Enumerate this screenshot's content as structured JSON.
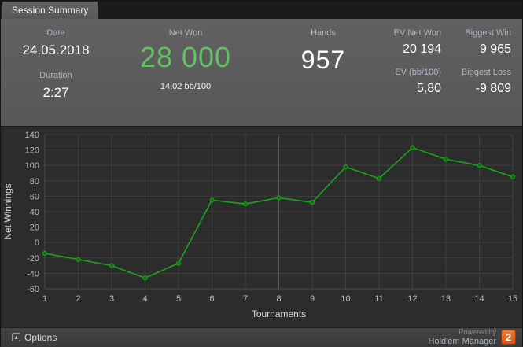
{
  "tab": {
    "label": "Session Summary"
  },
  "header": {
    "date": {
      "label": "Date",
      "value": "24.05.2018"
    },
    "duration": {
      "label": "Duration",
      "value": "2:27"
    },
    "net_won": {
      "label": "Net Won",
      "value": "28 000",
      "sub": "14,02 bb/100"
    },
    "hands": {
      "label": "Hands",
      "value": "957"
    },
    "ev_net_won": {
      "label": "EV Net Won",
      "value": "20 194"
    },
    "biggest_win": {
      "label": "Biggest Win",
      "value": "9 965"
    },
    "ev_bb": {
      "label": "EV (bb/100)",
      "value": "5,80"
    },
    "biggest_loss": {
      "label": "Biggest Loss",
      "value": "-9 809"
    }
  },
  "chart_data": {
    "type": "line",
    "title": "",
    "x": [
      1,
      2,
      3,
      4,
      5,
      6,
      7,
      8,
      9,
      10,
      11,
      12,
      13,
      14,
      15
    ],
    "values": [
      -14,
      -22,
      -30,
      -46,
      -27,
      55,
      50,
      58,
      52,
      98,
      83,
      123,
      108,
      100,
      85
    ],
    "xlabel": "Tournaments",
    "ylabel": "Net Winnings",
    "ylim": [
      -60,
      140
    ],
    "ytick_step": 20,
    "grid": true,
    "legend": false,
    "line_color": "#1ca31c",
    "point_color": "#0d720d",
    "grid_color": "#3e3e3e",
    "mid_grid_color": "#565656",
    "background": "#2c2c2c"
  },
  "footer": {
    "options_label": "Options",
    "caret_glyph": "▴",
    "powered_by": "Powered by",
    "brand": "Hold'em Manager",
    "brand_number": "2"
  },
  "colors": {
    "net_won_green": "#64c064",
    "header_bg": "#5c5c5c",
    "accent_orange": "#e8621e"
  }
}
